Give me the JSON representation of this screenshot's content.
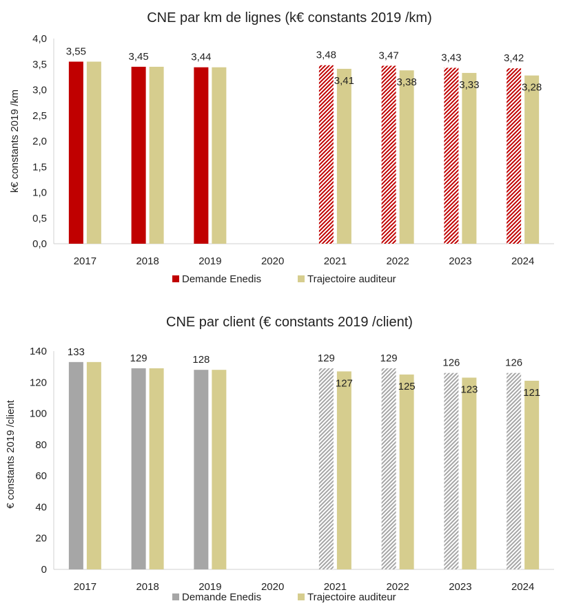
{
  "chart_data": [
    {
      "type": "bar",
      "title": "CNE par km de lignes (k€ constants 2019 /km)",
      "ylabel": "k€ constants 2019 /km",
      "ylim": [
        0,
        4.0
      ],
      "ytick_step": 0.5,
      "ytick_labels": [
        "0,0",
        "0,5",
        "1,0",
        "1,5",
        "2,0",
        "2,5",
        "3,0",
        "3,5",
        "4,0"
      ],
      "categories": [
        "2017",
        "2018",
        "2019",
        "2020",
        "2021",
        "2022",
        "2023",
        "2024"
      ],
      "series": [
        {
          "name": "Demande Enedis",
          "values": [
            3.55,
            3.45,
            3.44,
            null,
            3.48,
            3.47,
            3.43,
            3.42
          ],
          "labels": [
            "3,55",
            "3,45",
            "3,44",
            "",
            "3,48",
            "3,47",
            "3,43",
            "3,42"
          ],
          "hatched": [
            false,
            false,
            false,
            false,
            true,
            true,
            true,
            true
          ]
        },
        {
          "name": "Trajectoire auditeur",
          "values": [
            3.55,
            3.45,
            3.44,
            null,
            3.41,
            3.38,
            3.33,
            3.28
          ],
          "labels": [
            "",
            "",
            "",
            "",
            "3,41",
            "3,38",
            "3,33",
            "3,28"
          ],
          "hatched": [
            false,
            false,
            false,
            false,
            false,
            false,
            false,
            false
          ]
        }
      ],
      "colors": {
        "enedis": "#c00000",
        "auditeur": "#d6cd8e"
      },
      "legend_position": "bottom",
      "grid": false
    },
    {
      "type": "bar",
      "title": "CNE par client (€ constants 2019 /client)",
      "ylabel": "€ constants 2019 /client",
      "ylim": [
        0,
        140
      ],
      "ytick_step": 20,
      "ytick_labels": [
        "0",
        "20",
        "40",
        "60",
        "80",
        "100",
        "120",
        "140"
      ],
      "categories": [
        "2017",
        "2018",
        "2019",
        "2020",
        "2021",
        "2022",
        "2023",
        "2024"
      ],
      "series": [
        {
          "name": "Demande Enedis",
          "values": [
            133,
            129,
            128,
            null,
            129,
            129,
            126,
            126
          ],
          "labels": [
            "133",
            "129",
            "128",
            "",
            "129",
            "129",
            "126",
            "126"
          ],
          "hatched": [
            false,
            false,
            false,
            false,
            true,
            true,
            true,
            true
          ]
        },
        {
          "name": "Trajectoire auditeur",
          "values": [
            133,
            129,
            128,
            null,
            127,
            125,
            123,
            121
          ],
          "labels": [
            "",
            "",
            "",
            "",
            "127",
            "125",
            "123",
            "121"
          ],
          "hatched": [
            false,
            false,
            false,
            false,
            false,
            false,
            false,
            false
          ]
        }
      ],
      "colors": {
        "enedis": "#a6a6a6",
        "auditeur": "#d6cd8e"
      },
      "legend_position": "bottom",
      "grid": false
    }
  ]
}
